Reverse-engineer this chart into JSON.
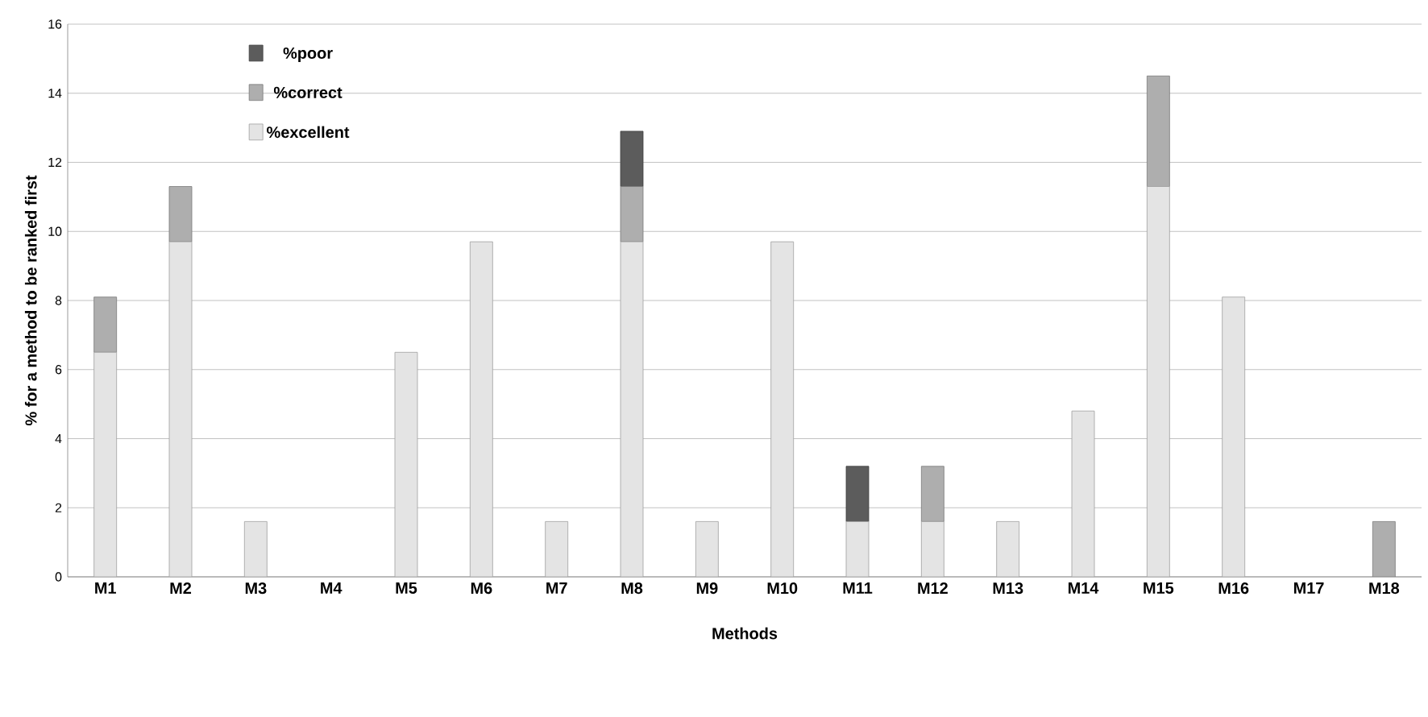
{
  "chart_data": {
    "type": "bar",
    "stacked": true,
    "xlabel": "Methods",
    "ylabel": "% for a method to be ranked first",
    "categories": [
      "M1",
      "M2",
      "M3",
      "M4",
      "M5",
      "M6",
      "M7",
      "M8",
      "M9",
      "M10",
      "M11",
      "M12",
      "M13",
      "M14",
      "M15",
      "M16",
      "M17",
      "M18"
    ],
    "series": [
      {
        "name": "%excellent",
        "color": "#e4e4e4",
        "values": [
          6.5,
          9.7,
          1.6,
          0,
          6.5,
          9.7,
          1.6,
          9.7,
          1.6,
          9.7,
          1.6,
          1.6,
          1.6,
          4.8,
          11.3,
          8.1,
          0,
          0
        ]
      },
      {
        "name": "%correct",
        "color": "#aeaeae",
        "values": [
          1.6,
          1.6,
          0,
          0,
          0,
          0,
          0,
          1.6,
          0,
          0,
          0,
          1.6,
          0,
          0,
          3.2,
          0,
          0,
          1.6
        ]
      },
      {
        "name": "%poor",
        "color": "#5c5c5c",
        "values": [
          0,
          0,
          0,
          0,
          0,
          0,
          0,
          1.6,
          0,
          0,
          1.6,
          0,
          0,
          0,
          0,
          0,
          0,
          0
        ]
      }
    ],
    "ylim": [
      0,
      16
    ],
    "yticks": [
      0,
      2,
      4,
      6,
      8,
      10,
      12,
      14,
      16
    ],
    "grid": "y",
    "legend": "top left"
  }
}
